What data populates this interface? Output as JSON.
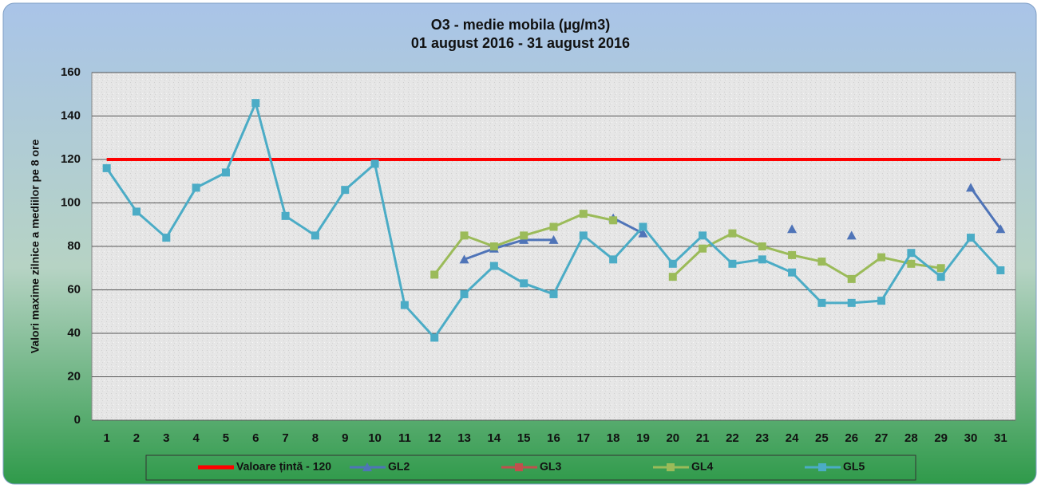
{
  "chart_data": {
    "type": "line",
    "title": "O3 - medie mobila (µg/m3)",
    "subtitle": "01 august 2016 - 31 august 2016",
    "y_label": "Valori maxime zilnice a mediilor pe 8 ore",
    "categories": [
      1,
      2,
      3,
      4,
      5,
      6,
      7,
      8,
      9,
      10,
      11,
      12,
      13,
      14,
      15,
      16,
      17,
      18,
      19,
      20,
      21,
      22,
      23,
      24,
      25,
      26,
      27,
      28,
      29,
      30,
      31
    ],
    "ylim": [
      0,
      160
    ],
    "yticks": [
      0,
      20,
      40,
      60,
      80,
      100,
      120,
      140,
      160
    ],
    "grid": true,
    "legend": "bottom",
    "series": [
      {
        "name": "Valoare țintă - 120",
        "color": "#ff0000",
        "marker": "none",
        "values": [
          120,
          120,
          120,
          120,
          120,
          120,
          120,
          120,
          120,
          120,
          120,
          120,
          120,
          120,
          120,
          120,
          120,
          120,
          120,
          120,
          120,
          120,
          120,
          120,
          120,
          120,
          120,
          120,
          120,
          120,
          120
        ]
      },
      {
        "name": "GL2",
        "color": "#4f74b8",
        "marker": "triangle",
        "values": [
          null,
          null,
          null,
          null,
          null,
          null,
          null,
          null,
          null,
          null,
          null,
          null,
          74,
          79,
          83,
          83,
          null,
          93,
          86,
          null,
          null,
          null,
          null,
          88,
          null,
          85,
          null,
          null,
          null,
          107,
          88
        ]
      },
      {
        "name": "GL3",
        "color": "#c0504d",
        "marker": "square",
        "values": [
          null,
          null,
          null,
          null,
          null,
          null,
          null,
          null,
          null,
          null,
          null,
          null,
          null,
          null,
          null,
          null,
          null,
          null,
          null,
          null,
          null,
          null,
          null,
          null,
          null,
          null,
          null,
          null,
          null,
          null,
          null
        ]
      },
      {
        "name": "GL4",
        "color": "#9bbb59",
        "marker": "square",
        "values": [
          null,
          null,
          null,
          null,
          null,
          null,
          null,
          null,
          null,
          null,
          null,
          67,
          85,
          80,
          85,
          89,
          95,
          92,
          null,
          66,
          79,
          86,
          80,
          76,
          73,
          65,
          75,
          72,
          70,
          null,
          null
        ]
      },
      {
        "name": "GL5",
        "color": "#4bacc6",
        "marker": "square",
        "values": [
          116,
          96,
          84,
          107,
          114,
          146,
          94,
          85,
          106,
          118,
          53,
          38,
          58,
          71,
          63,
          58,
          85,
          74,
          89,
          72,
          85,
          72,
          74,
          68,
          54,
          54,
          55,
          77,
          66,
          84,
          69
        ]
      }
    ]
  }
}
